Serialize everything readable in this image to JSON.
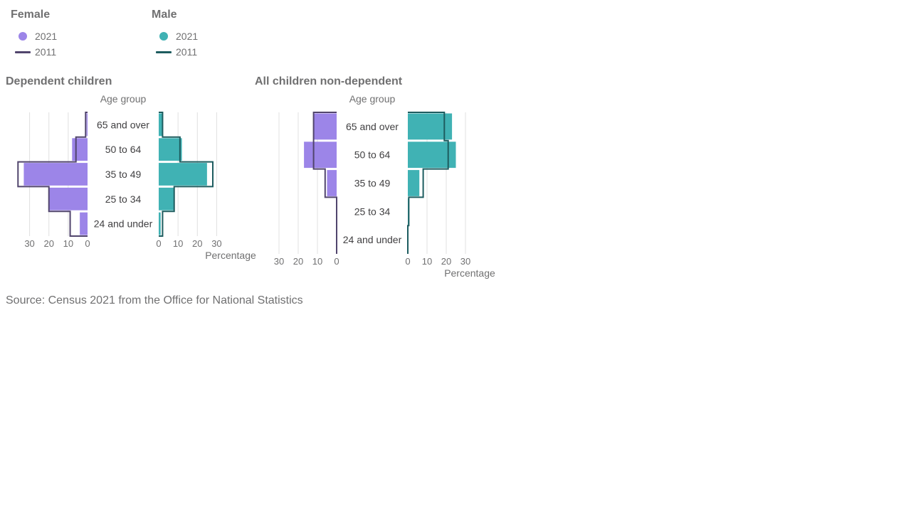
{
  "legend": {
    "female": {
      "title": "Female",
      "items": [
        {
          "label": "2021",
          "kind": "dot",
          "color": "#9c85e8"
        },
        {
          "label": "2011",
          "kind": "line",
          "color": "#51456d"
        }
      ]
    },
    "male": {
      "title": "Male",
      "items": [
        {
          "label": "2021",
          "kind": "dot",
          "color": "#40b2b4"
        },
        {
          "label": "2011",
          "kind": "line",
          "color": "#1d5c5f"
        }
      ]
    }
  },
  "source": "Source: Census 2021 from the Office for National Statistics",
  "chart_data": [
    {
      "type": "bar",
      "title": "Dependent children",
      "ylabel": "Age group",
      "xlabel": "Percentage",
      "xlim": [
        0,
        35
      ],
      "xticks": [
        30,
        20,
        10,
        0
      ],
      "categories": [
        "65 and over",
        "50 to 64",
        "35 to 49",
        "25 to 34",
        "24 and under"
      ],
      "series": [
        {
          "name": "Female 2021",
          "values": [
            0.5,
            8,
            33,
            20,
            4
          ]
        },
        {
          "name": "Female 2011",
          "values": [
            1,
            6,
            36,
            20,
            9
          ]
        },
        {
          "name": "Male 2021",
          "values": [
            2,
            12,
            25,
            8,
            1
          ]
        },
        {
          "name": "Male 2011",
          "values": [
            2,
            11,
            28,
            8,
            2
          ]
        }
      ]
    },
    {
      "type": "bar",
      "title": "All children non-dependent",
      "ylabel": "Age group",
      "xlabel": "Percentage",
      "xlim": [
        0,
        30
      ],
      "xticks": [
        30,
        20,
        10,
        0
      ],
      "categories": [
        "65 and over",
        "50 to 64",
        "35 to 49",
        "25 to 34",
        "24 and under"
      ],
      "series": [
        {
          "name": "Female 2021",
          "values": [
            12,
            17,
            5,
            0,
            0
          ]
        },
        {
          "name": "Female 2011",
          "values": [
            12,
            12,
            6,
            0,
            0
          ]
        },
        {
          "name": "Male 2021",
          "values": [
            23,
            25,
            6,
            0.3,
            0
          ]
        },
        {
          "name": "Male 2011",
          "values": [
            19,
            21,
            8,
            0.5,
            0
          ]
        }
      ]
    }
  ]
}
